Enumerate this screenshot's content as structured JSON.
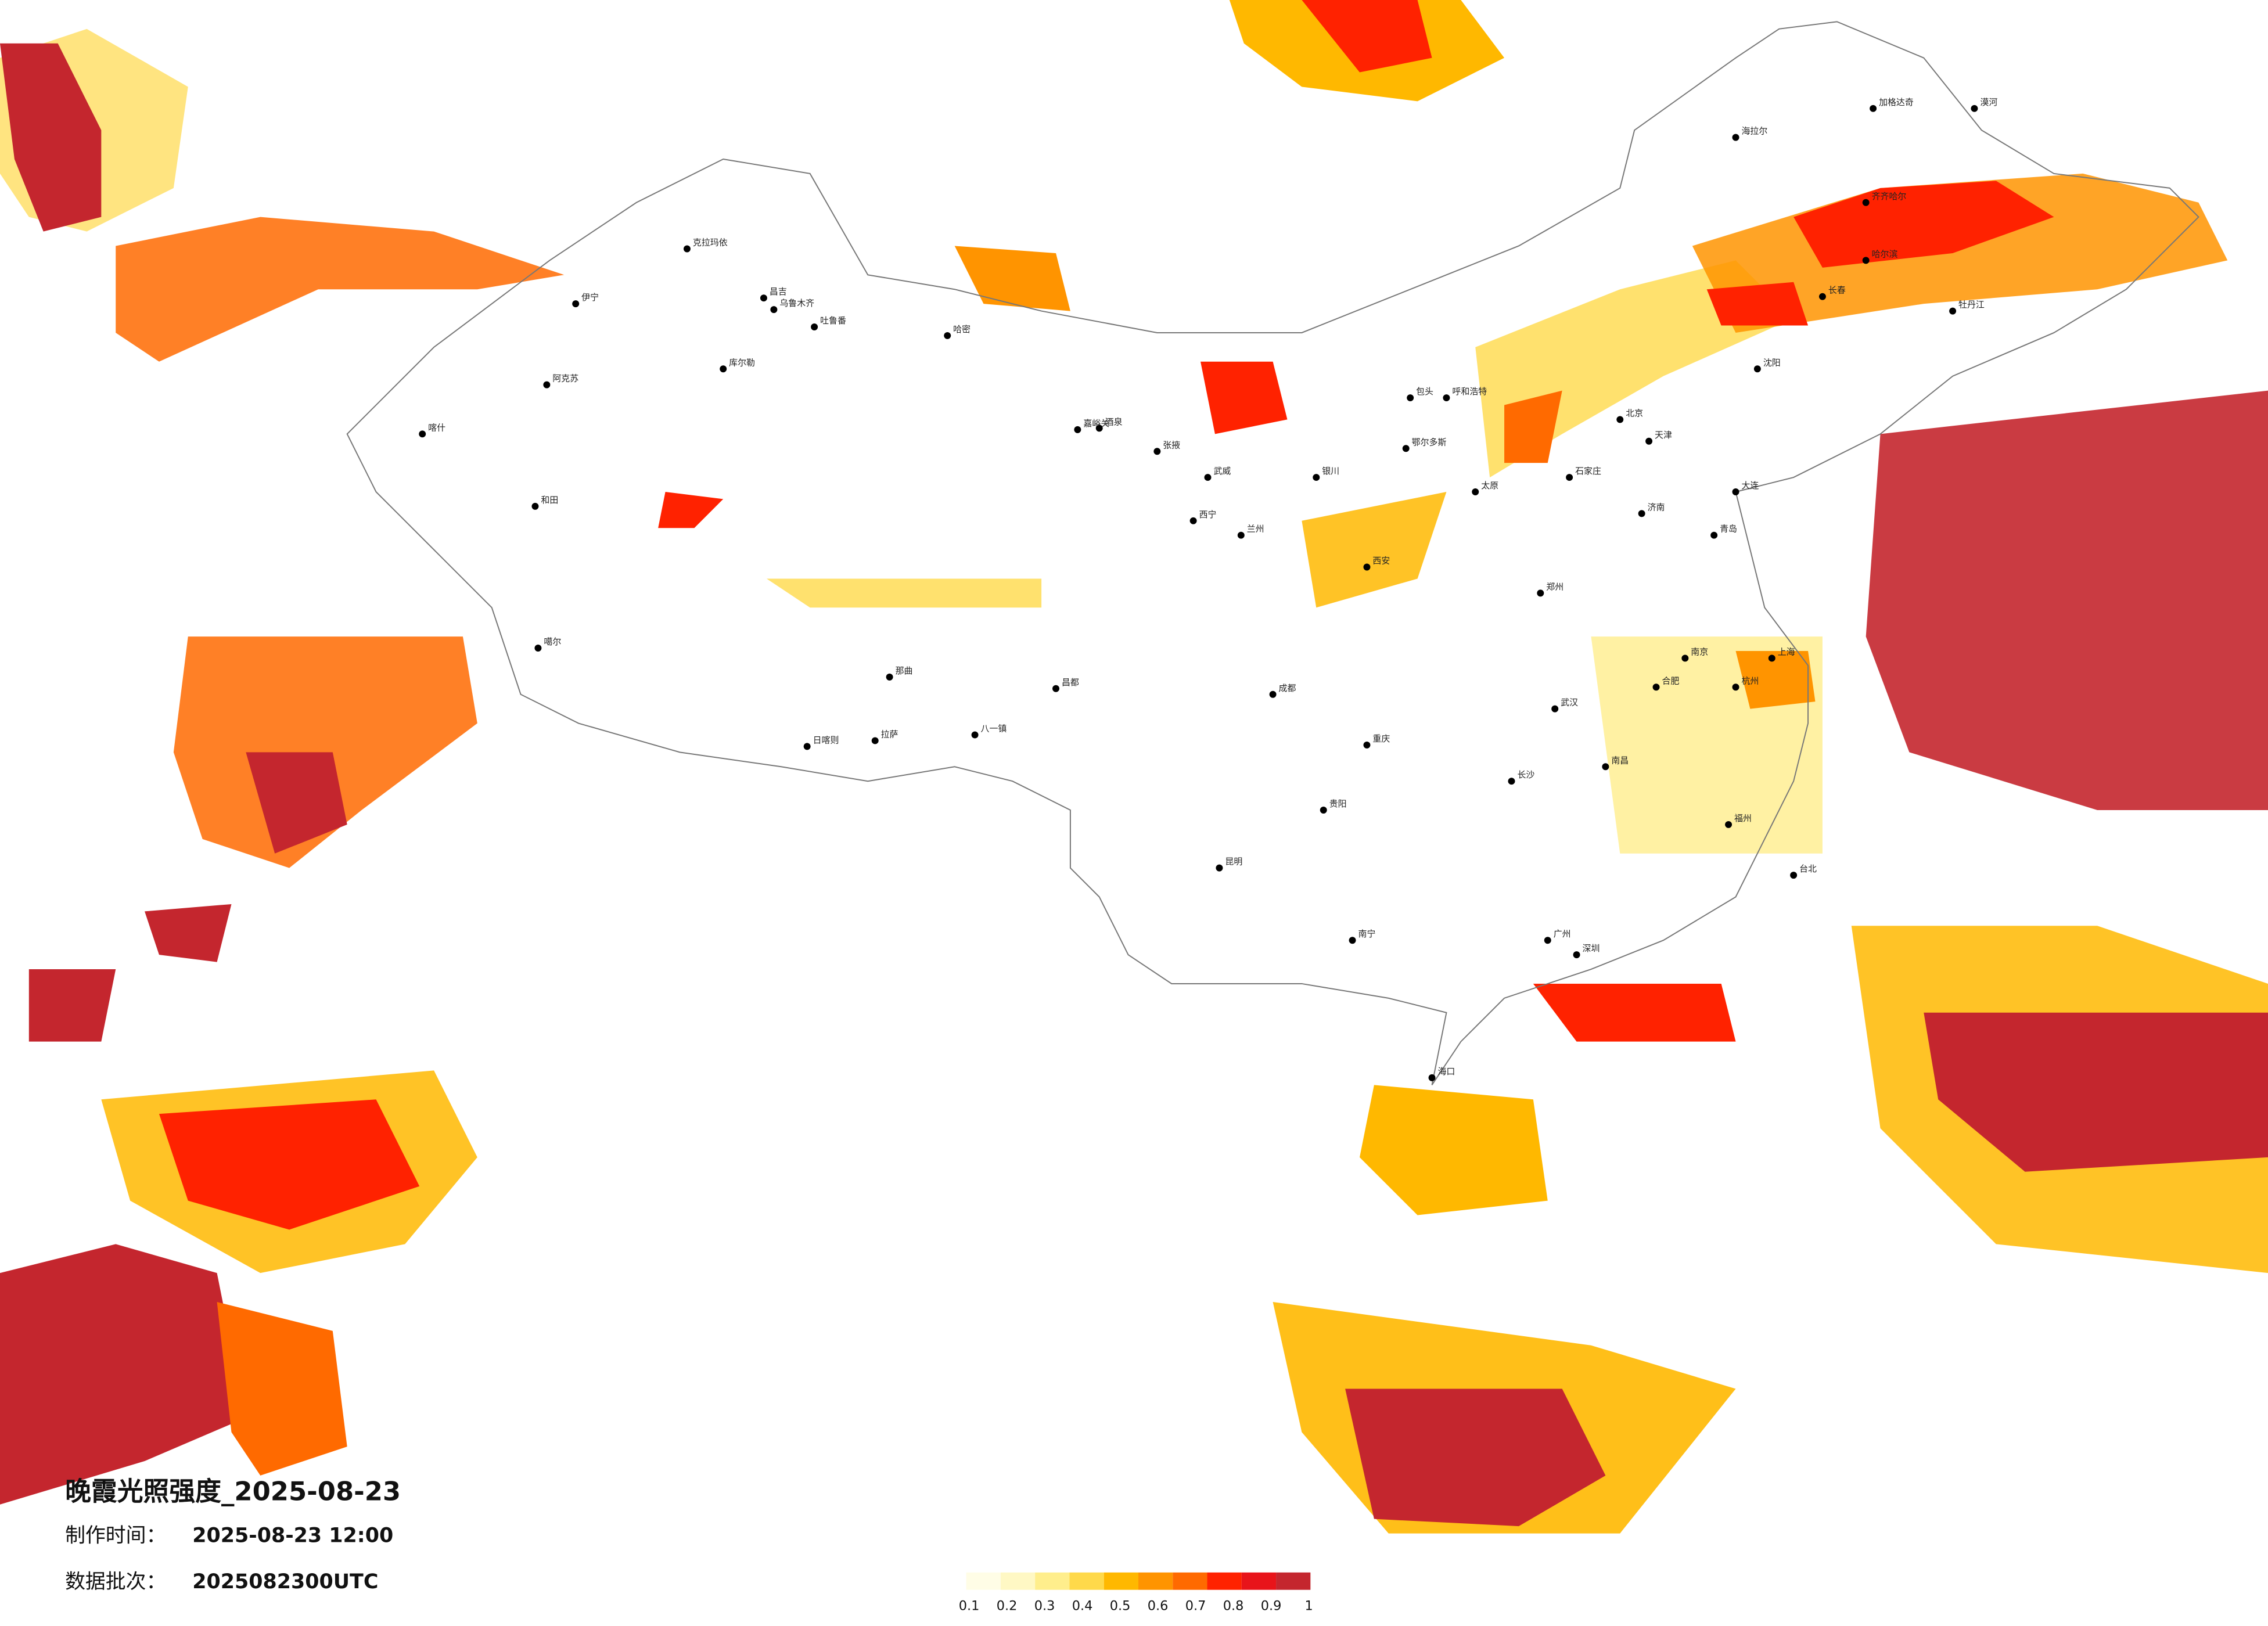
{
  "title": "晚霞光照强度_2025-08-23",
  "info": [
    {
      "label": "制作时间：",
      "value": "2025-08-23 12:00"
    },
    {
      "label": "数据批次：",
      "value": "2025082300UTC"
    }
  ],
  "colorbar": {
    "colors": [
      "#fffde6",
      "#fff8c4",
      "#ffee8c",
      "#ffd94a",
      "#ffb800",
      "#ff9400",
      "#ff6a00",
      "#ff2200",
      "#e8141a",
      "#c4262e"
    ],
    "ticks": [
      0.1,
      0.2,
      0.3,
      0.4,
      0.5,
      0.6,
      0.7,
      0.8,
      0.9,
      1
    ]
  },
  "cities": [
    "克拉玛依",
    "伊宁",
    "昌吉",
    "乌鲁木齐",
    "吐鲁番",
    "哈密",
    "库尔勒",
    "阿克苏",
    "喀什",
    "和田",
    "噶尔",
    "日喀则",
    "拉萨",
    "八一镇",
    "那曲",
    "昌都",
    "嘉峪关",
    "酒泉",
    "张掖",
    "武威",
    "西宁",
    "兰州",
    "银川",
    "呼和浩特",
    "包头",
    "鄂尔多斯",
    "太原",
    "西安",
    "成都",
    "重庆",
    "贵阳",
    "昆明",
    "南宁",
    "海口",
    "广州",
    "深圳",
    "福州",
    "台北",
    "杭州",
    "上海",
    "南京",
    "合肥",
    "武汉",
    "长沙",
    "南昌",
    "郑州",
    "济南",
    "石家庄",
    "北京",
    "天津",
    "沈阳",
    "长春",
    "哈尔滨",
    "齐齐哈尔",
    "海拉尔",
    "漠河",
    "加格达奇",
    "牡丹江",
    "大连",
    "青岛"
  ]
}
